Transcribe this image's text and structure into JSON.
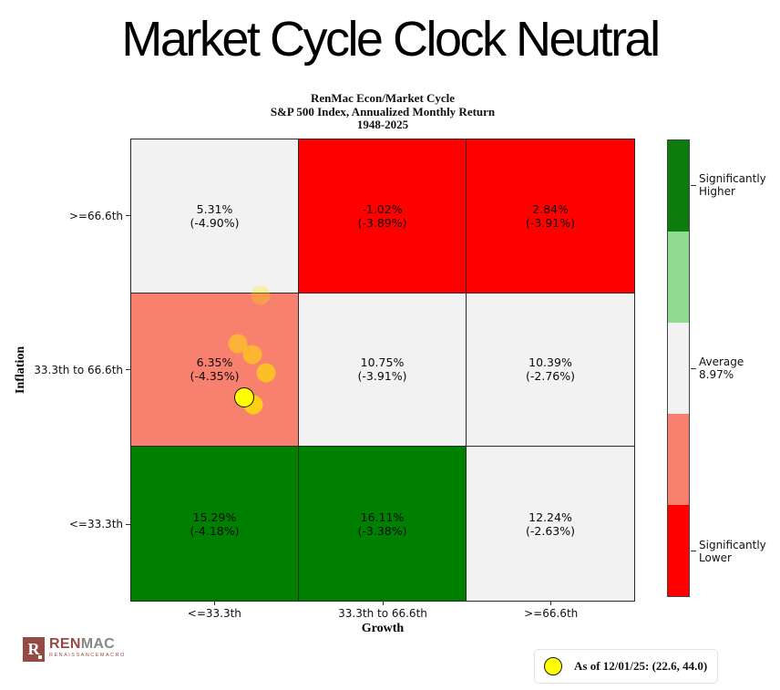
{
  "page_title": "Market Cycle Clock Neutral",
  "chart_data": {
    "type": "heatmap",
    "title_lines": [
      "RenMac Econ/Market Cycle",
      "S&P 500 Index, Annualized Monthly Return",
      "1948-2025"
    ],
    "xlabel": "Growth",
    "ylabel": "Inflation",
    "x_categories": [
      "<=33.3th",
      "33.3th to 66.6th",
      ">=66.6th"
    ],
    "y_categories": [
      ">=66.6th",
      "33.3th to 66.6th",
      "<=33.3th"
    ],
    "values": [
      [
        5.31,
        -1.02,
        2.84
      ],
      [
        6.35,
        10.75,
        10.39
      ],
      [
        15.29,
        16.11,
        12.24
      ]
    ],
    "drawdowns": [
      [
        -4.9,
        -3.89,
        -3.91
      ],
      [
        -4.35,
        -3.91,
        -2.76
      ],
      [
        -4.18,
        -3.38,
        -2.63
      ]
    ],
    "average_return": "8.97%",
    "axes": {
      "x_range": [
        0,
        100
      ],
      "y_range": [
        0,
        100
      ],
      "grid": true
    },
    "cells": [
      {
        "value": "5.31%",
        "drawdown": "(-4.90%)",
        "bg": "#f2f2f2"
      },
      {
        "value": "-1.02%",
        "drawdown": "(-3.89%)",
        "bg": "#fe0000"
      },
      {
        "value": "2.84%",
        "drawdown": "(-3.91%)",
        "bg": "#fe0000"
      },
      {
        "value": "6.35%",
        "drawdown": "(-4.35%)",
        "bg": "#f8806f"
      },
      {
        "value": "10.75%",
        "drawdown": "(-3.91%)",
        "bg": "#f2f2f2"
      },
      {
        "value": "10.39%",
        "drawdown": "(-2.76%)",
        "bg": "#f2f2f2"
      },
      {
        "value": "15.29%",
        "drawdown": "(-4.18%)",
        "bg": "#008000"
      },
      {
        "value": "16.11%",
        "drawdown": "(-3.38%)",
        "bg": "#008000"
      },
      {
        "value": "12.24%",
        "drawdown": "(-2.63%)",
        "bg": "#f2f2f2"
      }
    ],
    "colorbar": {
      "segments": [
        {
          "color": "#0c7c0c",
          "label_lines": [
            "Significantly",
            "Higher"
          ]
        },
        {
          "color": "#8fdb8f",
          "label_lines": []
        },
        {
          "color": "#f2f2f2",
          "label_lines": [
            "Average",
            "8.97%"
          ]
        },
        {
          "color": "#f8806f",
          "label_lines": []
        },
        {
          "color": "#fe0000",
          "label_lines": [
            "Significantly",
            "Lower"
          ]
        }
      ]
    },
    "points": {
      "trail_color": "#ffe100",
      "trail": [
        {
          "x": 25.8,
          "y": 66.2,
          "alpha": 0.3
        },
        {
          "x": 21.3,
          "y": 55.8,
          "alpha": 0.5
        },
        {
          "x": 24.2,
          "y": 53.4,
          "alpha": 0.55
        },
        {
          "x": 26.9,
          "y": 49.5,
          "alpha": 0.65
        },
        {
          "x": 24.4,
          "y": 42.6,
          "alpha": 0.8
        }
      ],
      "current": {
        "x": 22.6,
        "y": 44.0,
        "color": "#ffff00"
      }
    }
  },
  "legend": {
    "text": "As of 12/01/25:  (22.6, 44.0)",
    "marker_color": "#ffff00"
  },
  "logo": {
    "mark": "R",
    "name_primary": "REN",
    "name_secondary": "MAC",
    "subtext": "RENAISSANCEMACRO"
  }
}
